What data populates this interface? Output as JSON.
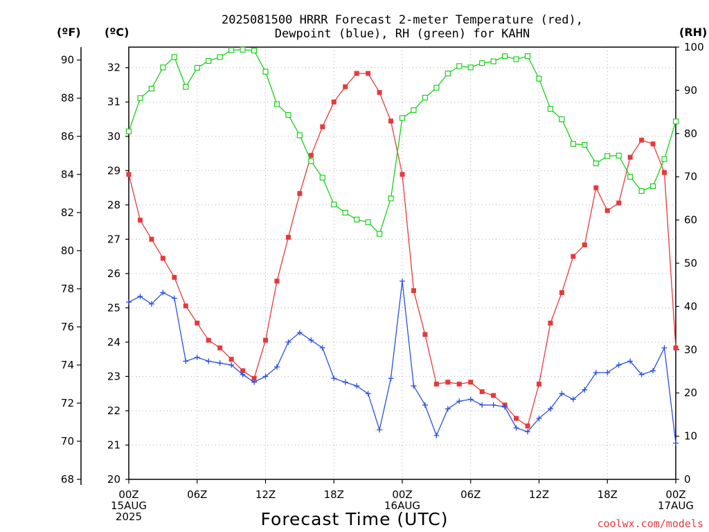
{
  "chart_data": {
    "type": "line",
    "title_line1": "2025081500 HRRR Forecast 2-meter Temperature (red),",
    "title_line2": "Dewpoint (blue), RH (green) for KAHN",
    "xlabel": "Forecast Time (UTC)",
    "credit": "coolwx.com/models",
    "unit_f": "(ºF)",
    "unit_c": "(ºC)",
    "unit_rh": "(RH)",
    "x_ticks": [
      {
        "hour": 0,
        "lines": [
          "00Z",
          "15AUG",
          "2025"
        ]
      },
      {
        "hour": 6,
        "lines": [
          "06Z"
        ]
      },
      {
        "hour": 12,
        "lines": [
          "12Z"
        ]
      },
      {
        "hour": 18,
        "lines": [
          "18Z"
        ]
      },
      {
        "hour": 24,
        "lines": [
          "00Z",
          "16AUG"
        ]
      },
      {
        "hour": 30,
        "lines": [
          "06Z"
        ]
      },
      {
        "hour": 36,
        "lines": [
          "12Z"
        ]
      },
      {
        "hour": 42,
        "lines": [
          "18Z"
        ]
      },
      {
        "hour": 48,
        "lines": [
          "00Z",
          "17AUG"
        ]
      }
    ],
    "xlim": [
      0,
      48
    ],
    "ylim_c": [
      20,
      32.6
    ],
    "ylim_f": [
      68,
      90.68
    ],
    "ylim_rh": [
      0,
      100
    ],
    "yticks_f": [
      68,
      70,
      72,
      74,
      76,
      78,
      80,
      82,
      84,
      86,
      88,
      90
    ],
    "yticks_c": [
      20,
      21,
      22,
      23,
      24,
      25,
      26,
      27,
      28,
      29,
      30,
      31,
      32
    ],
    "yticks_rh": [
      0,
      10,
      20,
      30,
      40,
      50,
      60,
      70,
      80,
      90,
      100
    ],
    "grid": true,
    "x_hours": [
      0,
      1,
      2,
      3,
      4,
      5,
      6,
      7,
      8,
      9,
      10,
      11,
      12,
      13,
      14,
      15,
      16,
      17,
      18,
      19,
      20,
      21,
      22,
      23,
      24,
      25,
      26,
      27,
      28,
      29,
      30,
      31,
      32,
      33,
      34,
      35,
      36,
      37,
      38,
      39,
      40,
      41,
      42,
      43,
      44,
      45,
      46,
      47,
      48
    ],
    "series": [
      {
        "name": "Temperature",
        "units": "°F",
        "color": "#e8383c",
        "marker": "filled-square",
        "values": [
          84.0,
          81.6,
          80.6,
          79.6,
          78.6,
          77.1,
          76.2,
          75.3,
          74.9,
          74.3,
          73.7,
          73.3,
          75.3,
          78.4,
          80.7,
          83.0,
          85.0,
          86.5,
          87.8,
          88.6,
          89.3,
          89.3,
          88.3,
          86.8,
          84.0,
          77.9,
          75.6,
          73.0,
          73.1,
          73.0,
          73.1,
          72.6,
          72.4,
          71.9,
          71.2,
          70.8,
          73.0,
          76.2,
          77.8,
          79.7,
          80.3,
          83.3,
          82.1,
          82.5,
          84.9,
          85.8,
          85.6,
          84.1,
          74.9
        ]
      },
      {
        "name": "Dewpoint",
        "units": "°F",
        "color": "#2850e0",
        "marker": "plus",
        "values": [
          77.3,
          77.6,
          77.2,
          77.8,
          77.5,
          74.2,
          74.4,
          74.2,
          74.1,
          74.0,
          73.5,
          73.1,
          73.4,
          73.9,
          75.2,
          75.7,
          75.3,
          74.9,
          73.3,
          73.1,
          72.9,
          72.5,
          70.6,
          73.3,
          78.4,
          72.9,
          71.9,
          70.3,
          71.7,
          72.1,
          72.2,
          71.9,
          71.9,
          71.8,
          70.7,
          70.5,
          71.2,
          71.7,
          72.5,
          72.2,
          72.7,
          73.6,
          73.6,
          74.0,
          74.2,
          73.5,
          73.7,
          74.9,
          69.9
        ]
      },
      {
        "name": "RH",
        "units": "%",
        "color": "#18d018",
        "marker": "open-square",
        "values": [
          80.5,
          88.2,
          90.4,
          95.3,
          97.7,
          90.8,
          95.2,
          96.8,
          97.7,
          99.3,
          99.4,
          99.2,
          94.3,
          86.8,
          84.3,
          79.6,
          73.6,
          69.8,
          63.6,
          61.7,
          60.1,
          59.5,
          56.8,
          65.0,
          83.6,
          85.4,
          88.3,
          90.6,
          93.9,
          95.6,
          95.3,
          96.3,
          96.7,
          97.9,
          97.2,
          97.9,
          92.7,
          85.7,
          83.3,
          77.6,
          77.4,
          73.1,
          74.8,
          74.9,
          70.0,
          66.7,
          67.8,
          74.1,
          82.8
        ]
      }
    ]
  }
}
